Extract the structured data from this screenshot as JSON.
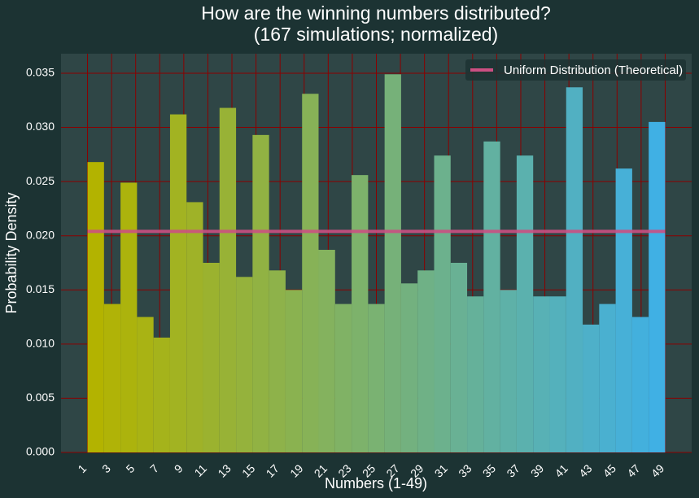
{
  "chart_data": {
    "type": "histogram",
    "title": "How are the winning numbers distributed?",
    "subtitle": "(167 simulations; normalized)",
    "x_label": "Numbers (1-49)",
    "y_label": "Probability Density",
    "bins": [
      1,
      2.371,
      3.743,
      5.114,
      6.486,
      7.857,
      9.229,
      10.6,
      11.971,
      13.343,
      14.714,
      16.086,
      17.457,
      18.829,
      20.2,
      21.571,
      22.943,
      24.314,
      25.686,
      27.057,
      28.429,
      29.8,
      31.171,
      32.543,
      33.914,
      35.286,
      36.657,
      38.029,
      39.4,
      40.771,
      42.143,
      43.514,
      44.886,
      46.257,
      47.629,
      49
    ],
    "values": [
      0.0268,
      0.0137,
      0.0249,
      0.0125,
      0.0106,
      0.0312,
      0.0231,
      0.0175,
      0.0318,
      0.0162,
      0.0293,
      0.0168,
      0.015,
      0.0331,
      0.0187,
      0.0137,
      0.0256,
      0.0137,
      0.0349,
      0.0156,
      0.0168,
      0.0274,
      0.0175,
      0.0144,
      0.0287,
      0.015,
      0.0274,
      0.0144,
      0.0144,
      0.0337,
      0.0118,
      0.0137,
      0.0262,
      0.0125,
      0.0305
    ],
    "color_start": "#b3b300",
    "color_end": "#40b0e4",
    "reference_line": {
      "name": "Uniform Distribution (Theoretical)",
      "x": [
        1,
        49
      ],
      "y": 0.0204,
      "color": "#cc4f82"
    },
    "xlim": [
      -1.2,
      51.2
    ],
    "ylim": [
      0,
      0.0368
    ],
    "xticks": [
      1,
      3,
      5,
      7,
      9,
      11,
      13,
      15,
      17,
      19,
      21,
      23,
      25,
      27,
      29,
      31,
      33,
      35,
      37,
      39,
      41,
      43,
      45,
      47,
      49
    ],
    "yticks": [
      {
        "value": 0,
        "label": "0.000"
      },
      {
        "value": 0.005,
        "label": "0.005"
      },
      {
        "value": 0.01,
        "label": "0.010"
      },
      {
        "value": 0.015,
        "label": "0.015"
      },
      {
        "value": 0.02,
        "label": "0.020"
      },
      {
        "value": 0.025,
        "label": "0.025"
      },
      {
        "value": 0.03,
        "label": "0.030"
      },
      {
        "value": 0.035,
        "label": "0.035"
      }
    ],
    "grid": true,
    "grid_color": "#8b0000",
    "legend_position": "upper right"
  }
}
